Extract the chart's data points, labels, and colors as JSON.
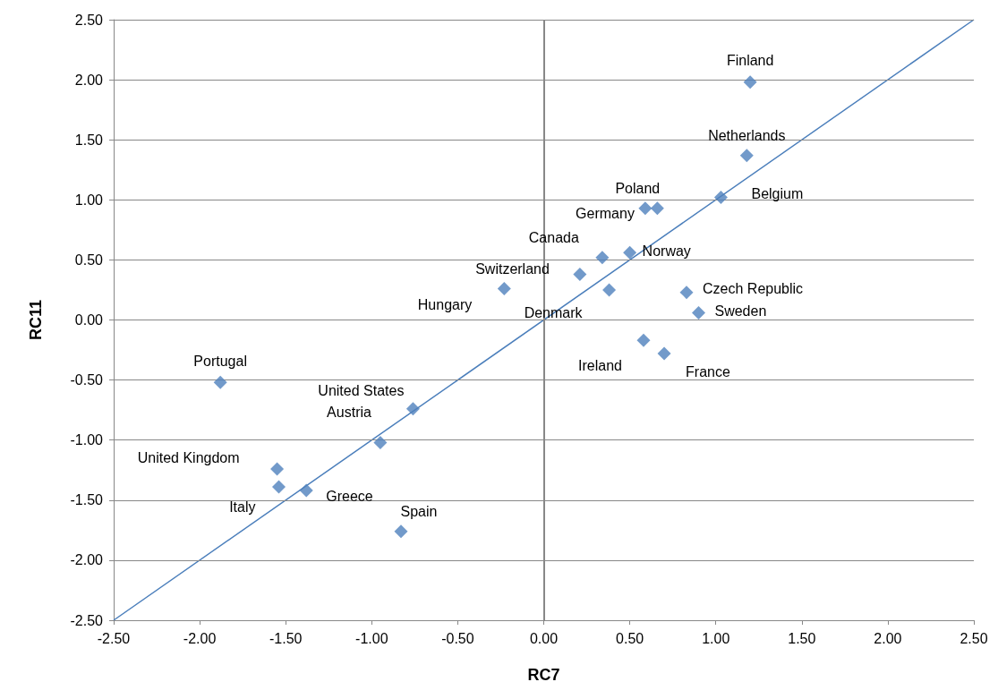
{
  "chart_data": {
    "type": "scatter",
    "xlabel": "RC7",
    "ylabel": "RC11",
    "series": [
      {
        "type": "scatter",
        "color": "#4f81bd",
        "marker": "diamond",
        "x": [
          1.2,
          1.18,
          1.03,
          0.59,
          0.66,
          0.5,
          0.34,
          0.21,
          -0.23,
          0.38,
          0.83,
          0.9,
          -1.88,
          0.58,
          0.7,
          -0.76,
          -0.95,
          -1.55,
          -1.54,
          -1.38,
          -0.83
        ],
        "values": [
          1.98,
          1.37,
          1.02,
          0.93,
          0.93,
          0.56,
          0.52,
          0.38,
          0.26,
          0.25,
          0.23,
          0.06,
          -0.52,
          -0.17,
          -0.28,
          -0.74,
          -1.02,
          -1.24,
          -1.39,
          -1.42,
          -1.76
        ]
      },
      {
        "type": "line",
        "color": "#4a7ebb",
        "marker": "none",
        "x": [
          -2.5,
          2.5
        ],
        "values": [
          -2.5,
          2.5
        ]
      }
    ],
    "annotations": [
      {
        "text": "Finland",
        "x": 1.2,
        "y": 1.98
      },
      {
        "text": "Netherlands",
        "x": 1.18,
        "y": 1.37
      },
      {
        "text": "Belgium",
        "x": 1.03,
        "y": 1.02
      },
      {
        "text": "Poland",
        "x": 0.66,
        "y": 0.93
      },
      {
        "text": "Germany",
        "x": 0.59,
        "y": 0.93
      },
      {
        "text": "Norway",
        "x": 0.5,
        "y": 0.56
      },
      {
        "text": "Canada",
        "x": 0.34,
        "y": 0.52
      },
      {
        "text": "Switzerland",
        "x": 0.21,
        "y": 0.38
      },
      {
        "text": "Hungary",
        "x": -0.23,
        "y": 0.26
      },
      {
        "text": "Denmark",
        "x": 0.38,
        "y": 0.25
      },
      {
        "text": "Czech Republic",
        "x": 0.83,
        "y": 0.23
      },
      {
        "text": "Sweden",
        "x": 0.9,
        "y": 0.06
      },
      {
        "text": "Portugal",
        "x": -1.88,
        "y": -0.52
      },
      {
        "text": "Ireland",
        "x": 0.58,
        "y": -0.17
      },
      {
        "text": "France",
        "x": 0.7,
        "y": -0.28
      },
      {
        "text": "United States",
        "x": -0.76,
        "y": -0.74
      },
      {
        "text": "Austria",
        "x": -0.95,
        "y": -1.02
      },
      {
        "text": "United Kingdom",
        "x": -1.55,
        "y": -1.24
      },
      {
        "text": "Italy",
        "x": -1.54,
        "y": -1.39
      },
      {
        "text": "Greece",
        "x": -1.38,
        "y": -1.42
      },
      {
        "text": "Spain",
        "x": -0.83,
        "y": -1.76
      }
    ],
    "xlim": [
      -2.5,
      2.5
    ],
    "ylim": [
      -2.5,
      2.5
    ],
    "xticks": [
      {
        "value": -2.5,
        "label": "-2.50"
      },
      {
        "value": -2,
        "label": "-2.00"
      },
      {
        "value": -1.5,
        "label": "-1.50"
      },
      {
        "value": -1,
        "label": "-1.00"
      },
      {
        "value": -0.5,
        "label": "-0.50"
      },
      {
        "value": 0,
        "label": "0.00"
      },
      {
        "value": 0.5,
        "label": "0.50"
      },
      {
        "value": 1,
        "label": "1.00"
      },
      {
        "value": 1.5,
        "label": "1.50"
      },
      {
        "value": 2,
        "label": "2.00"
      },
      {
        "value": 2.5,
        "label": "2.50"
      }
    ],
    "yticks": [
      {
        "value": -2.5,
        "label": "-2.50"
      },
      {
        "value": -2,
        "label": "-2.00"
      },
      {
        "value": -1.5,
        "label": "-1.50"
      },
      {
        "value": -1,
        "label": "-1.00"
      },
      {
        "value": -0.5,
        "label": "-0.50"
      },
      {
        "value": 0,
        "label": "0.00"
      },
      {
        "value": 0.5,
        "label": "0.50"
      },
      {
        "value": 1,
        "label": "1.00"
      },
      {
        "value": 1.5,
        "label": "1.50"
      },
      {
        "value": 2,
        "label": "2.00"
      },
      {
        "value": 2.5,
        "label": "2.50"
      }
    ],
    "ref_lines": [
      {
        "axis": "x",
        "value": 0,
        "color": "#888888"
      }
    ],
    "grid": "y"
  }
}
